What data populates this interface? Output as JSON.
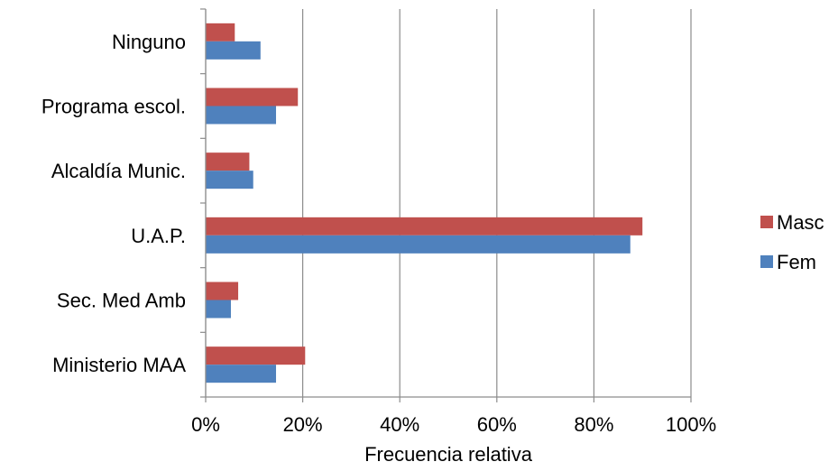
{
  "chart_data": {
    "type": "bar",
    "orientation": "horizontal",
    "categories": [
      "Ministerio MAA",
      "Sec. Med Amb",
      "U.A.P.",
      "Alcaldía Munic.",
      "Programa escol.",
      "Ninguno"
    ],
    "series": [
      {
        "name": "Fem",
        "color": "#4f81bd",
        "values": [
          14.5,
          5.2,
          87.5,
          9.8,
          14.5,
          11.3
        ]
      },
      {
        "name": "Masc",
        "color": "#c0504d",
        "values": [
          20.5,
          6.7,
          90.0,
          9.0,
          19.0,
          6.0
        ]
      }
    ],
    "xlabel": "Frecuencia relativa",
    "ylabel": "",
    "title": "",
    "xlim": [
      0,
      100
    ],
    "xticks": [
      "0%",
      "20%",
      "40%",
      "60%",
      "80%",
      "100%"
    ],
    "grid": "vertical",
    "legend": {
      "placement": "right",
      "entries": [
        "Masc",
        "Fem"
      ]
    }
  }
}
